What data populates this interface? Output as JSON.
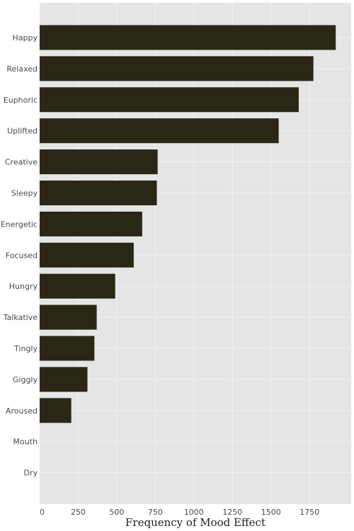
{
  "chart_data": {
    "type": "bar",
    "orientation": "horizontal",
    "title": "",
    "xlabel": "Frequency of Mood Effect",
    "ylabel": "",
    "categories": [
      "Happy",
      "Relaxed",
      "Euphoric",
      "Uplifted",
      "Creative",
      "Sleepy",
      "Energetic",
      "Focused",
      "Hungry",
      "Talkative",
      "Tingly",
      "Giggly",
      "Aroused",
      "Mouth",
      "Dry"
    ],
    "values": [
      1920,
      1775,
      1680,
      1550,
      765,
      760,
      665,
      610,
      490,
      370,
      355,
      310,
      205,
      0,
      0
    ],
    "xticks": [
      0,
      250,
      500,
      750,
      1000,
      1250,
      1500,
      1750
    ],
    "xlim": [
      0,
      2020
    ],
    "grid": true,
    "legend": "none",
    "colors": {
      "bar": "#2a2716",
      "plot_background": "#e5e5e5",
      "grid": "#f2f2f2"
    }
  }
}
